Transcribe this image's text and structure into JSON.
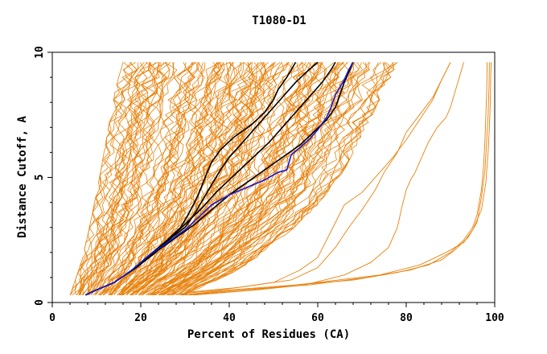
{
  "chart_data": {
    "type": "line",
    "title": "T1080-D1",
    "xlabel": "Percent of Residues (CA)",
    "ylabel": "Distance Cutoff, A",
    "xlim": [
      0,
      100
    ],
    "ylim": [
      0,
      10
    ],
    "x_ticks": [
      "0",
      "20",
      "40",
      "60",
      "80",
      "100"
    ],
    "y_ticks": [
      "0",
      "5",
      "10"
    ],
    "grid": false,
    "legend": "none",
    "colors": {
      "background_models": "#e8820c",
      "highlight_models": "#000000",
      "best_model": "#1a1acc",
      "axes": "#000000"
    },
    "highlight_series": [
      {
        "color": "#000000",
        "points": [
          [
            7.5,
            0.3
          ],
          [
            10,
            0.5
          ],
          [
            14,
            0.8
          ],
          [
            18,
            1.3
          ],
          [
            22,
            1.9
          ],
          [
            26,
            2.5
          ],
          [
            29,
            3.0
          ],
          [
            31,
            3.6
          ],
          [
            33,
            4.3
          ],
          [
            35,
            5.2
          ],
          [
            36,
            5.6
          ],
          [
            38,
            6.1
          ],
          [
            41,
            6.6
          ],
          [
            45,
            7.1
          ],
          [
            48,
            7.6
          ],
          [
            50,
            8.1
          ],
          [
            51,
            8.5
          ],
          [
            53,
            9.0
          ],
          [
            54,
            9.3
          ],
          [
            55,
            9.6
          ]
        ]
      },
      {
        "color": "#000000",
        "points": [
          [
            7.5,
            0.3
          ],
          [
            10,
            0.5
          ],
          [
            14,
            0.8
          ],
          [
            19,
            1.4
          ],
          [
            23,
            2.0
          ],
          [
            27,
            2.6
          ],
          [
            30,
            3.0
          ],
          [
            32,
            3.5
          ],
          [
            34,
            4.1
          ],
          [
            36,
            4.7
          ],
          [
            38,
            5.3
          ],
          [
            40,
            5.8
          ],
          [
            43,
            6.4
          ],
          [
            46,
            7.0
          ],
          [
            49,
            7.6
          ],
          [
            52,
            8.2
          ],
          [
            55,
            8.8
          ],
          [
            58,
            9.3
          ],
          [
            60,
            9.6
          ]
        ]
      },
      {
        "color": "#000000",
        "points": [
          [
            7.5,
            0.3
          ],
          [
            10,
            0.5
          ],
          [
            14,
            0.8
          ],
          [
            19,
            1.4
          ],
          [
            24,
            2.1
          ],
          [
            28,
            2.8
          ],
          [
            31,
            3.3
          ],
          [
            34,
            3.8
          ],
          [
            37,
            4.4
          ],
          [
            40,
            4.9
          ],
          [
            43,
            5.4
          ],
          [
            46,
            5.9
          ],
          [
            49,
            6.4
          ],
          [
            52,
            7.0
          ],
          [
            55,
            7.6
          ],
          [
            58,
            8.2
          ],
          [
            61,
            8.8
          ],
          [
            63,
            9.3
          ],
          [
            64,
            9.6
          ]
        ]
      },
      {
        "color": "#000000",
        "points": [
          [
            7.5,
            0.3
          ],
          [
            10,
            0.5
          ],
          [
            14,
            0.8
          ],
          [
            19,
            1.4
          ],
          [
            24,
            2.1
          ],
          [
            28,
            2.6
          ],
          [
            32,
            3.1
          ],
          [
            36,
            3.7
          ],
          [
            40,
            4.3
          ],
          [
            44,
            4.8
          ],
          [
            48,
            5.3
          ],
          [
            52,
            5.8
          ],
          [
            56,
            6.3
          ],
          [
            59,
            6.8
          ],
          [
            62,
            7.3
          ],
          [
            64,
            7.8
          ],
          [
            65,
            8.3
          ],
          [
            66,
            8.8
          ],
          [
            67,
            9.2
          ],
          [
            68,
            9.6
          ]
        ]
      }
    ],
    "best_series": {
      "color": "#1a1acc",
      "points": [
        [
          7.5,
          0.3
        ],
        [
          10,
          0.5
        ],
        [
          14,
          0.8
        ],
        [
          18,
          1.3
        ],
        [
          22,
          1.9
        ],
        [
          26,
          2.4
        ],
        [
          30,
          2.9
        ],
        [
          33,
          3.4
        ],
        [
          36,
          3.9
        ],
        [
          40,
          4.3
        ],
        [
          44,
          4.6
        ],
        [
          48,
          4.9
        ],
        [
          51,
          5.2
        ],
        [
          53,
          5.3
        ],
        [
          54,
          5.9
        ],
        [
          56,
          6.2
        ],
        [
          58,
          6.5
        ],
        [
          60,
          6.9
        ],
        [
          62,
          7.4
        ],
        [
          63,
          7.8
        ],
        [
          64,
          8.3
        ],
        [
          66,
          8.9
        ],
        [
          67,
          9.3
        ],
        [
          68,
          9.6
        ]
      ]
    },
    "outlier_series": [
      {
        "color": "#e8820c",
        "points": [
          [
            29,
            0.3
          ],
          [
            40,
            0.5
          ],
          [
            55,
            0.7
          ],
          [
            68,
            0.9
          ],
          [
            78,
            1.2
          ],
          [
            85,
            1.5
          ],
          [
            90,
            2.0
          ],
          [
            93,
            2.5
          ],
          [
            95,
            3.0
          ],
          [
            96,
            3.5
          ],
          [
            97,
            4.5
          ],
          [
            97.5,
            5.5
          ],
          [
            97.8,
            6.5
          ],
          [
            98,
            7.5
          ],
          [
            98.2,
            8.5
          ],
          [
            98.3,
            9.6
          ]
        ]
      },
      {
        "color": "#e8820c",
        "points": [
          [
            30,
            0.3
          ],
          [
            42,
            0.5
          ],
          [
            58,
            0.7
          ],
          [
            71,
            1.0
          ],
          [
            81,
            1.3
          ],
          [
            88,
            1.7
          ],
          [
            91,
            2.1
          ],
          [
            94,
            2.6
          ],
          [
            96,
            3.2
          ],
          [
            97,
            4.2
          ],
          [
            97.8,
            5.3
          ],
          [
            98.2,
            6.5
          ],
          [
            98.5,
            7.5
          ],
          [
            98.7,
            8.6
          ],
          [
            98.8,
            9.6
          ]
        ]
      },
      {
        "color": "#e8820c",
        "points": [
          [
            31,
            0.3
          ],
          [
            45,
            0.5
          ],
          [
            60,
            0.8
          ],
          [
            74,
            1.1
          ],
          [
            83,
            1.5
          ],
          [
            89,
            2.0
          ],
          [
            93,
            2.4
          ],
          [
            95,
            2.9
          ],
          [
            97,
            3.7
          ],
          [
            98,
            4.8
          ],
          [
            98.5,
            6.0
          ],
          [
            98.8,
            7.0
          ],
          [
            99,
            8.0
          ],
          [
            99.1,
            9.0
          ],
          [
            99.2,
            9.6
          ]
        ]
      },
      {
        "color": "#e8820c",
        "points": [
          [
            32,
            0.3
          ],
          [
            46,
            0.5
          ],
          [
            57,
            0.7
          ],
          [
            66,
            1.1
          ],
          [
            72,
            1.6
          ],
          [
            76,
            2.2
          ],
          [
            78,
            3.0
          ],
          [
            79,
            3.8
          ],
          [
            80,
            4.5
          ],
          [
            81,
            4.9
          ],
          [
            82,
            5.2
          ],
          [
            83,
            5.6
          ],
          [
            85,
            6.4
          ],
          [
            87,
            7.0
          ],
          [
            89,
            7.4
          ],
          [
            90,
            7.8
          ],
          [
            91,
            8.4
          ],
          [
            92,
            9.0
          ],
          [
            93,
            9.6
          ]
        ]
      },
      {
        "color": "#e8820c",
        "points": [
          [
            30,
            0.4
          ],
          [
            42,
            0.6
          ],
          [
            54,
            0.9
          ],
          [
            60,
            1.4
          ],
          [
            64,
            2.2
          ],
          [
            67,
            3.0
          ],
          [
            70,
            3.7
          ],
          [
            73,
            4.5
          ],
          [
            75,
            5.2
          ],
          [
            78,
            6.0
          ],
          [
            80,
            6.8
          ],
          [
            83,
            7.5
          ],
          [
            86,
            8.2
          ],
          [
            88,
            8.9
          ],
          [
            90,
            9.6
          ]
        ]
      },
      {
        "color": "#e8820c",
        "points": [
          [
            26,
            0.3
          ],
          [
            38,
            0.5
          ],
          [
            50,
            0.8
          ],
          [
            56,
            1.3
          ],
          [
            60,
            1.8
          ],
          [
            62,
            2.5
          ],
          [
            64,
            3.2
          ],
          [
            66,
            3.9
          ],
          [
            70,
            4.4
          ],
          [
            74,
            5.2
          ],
          [
            77,
            5.8
          ],
          [
            80,
            6.5
          ],
          [
            83,
            7.3
          ],
          [
            86,
            8.1
          ],
          [
            88,
            8.9
          ],
          [
            90,
            9.6
          ]
        ]
      }
    ],
    "background_band": {
      "left_edge": [
        [
          4,
          0.3
        ],
        [
          5,
          0.8
        ],
        [
          6,
          1.3
        ],
        [
          7,
          1.9
        ],
        [
          8,
          2.7
        ],
        [
          9,
          3.5
        ],
        [
          10,
          4.4
        ],
        [
          11,
          5.3
        ],
        [
          12,
          6.3
        ],
        [
          13,
          7.3
        ],
        [
          14,
          8.3
        ],
        [
          15,
          9.0
        ],
        [
          16,
          9.6
        ]
      ],
      "right_edge": [
        [
          30,
          0.3
        ],
        [
          36,
          0.8
        ],
        [
          42,
          1.3
        ],
        [
          47,
          1.9
        ],
        [
          52,
          2.6
        ],
        [
          56,
          3.2
        ],
        [
          60,
          3.9
        ],
        [
          63,
          4.6
        ],
        [
          66,
          5.3
        ],
        [
          68,
          6.0
        ],
        [
          70,
          6.7
        ],
        [
          72,
          7.4
        ],
        [
          74,
          8.1
        ],
        [
          76,
          8.8
        ],
        [
          77,
          9.2
        ],
        [
          78,
          9.6
        ]
      ],
      "model_count": 140
    }
  }
}
